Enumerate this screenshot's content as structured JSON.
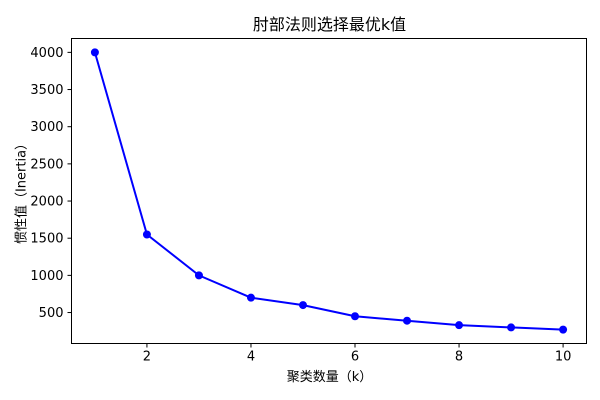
{
  "chart_data": {
    "type": "line",
    "title": "肘部法则选择最优k值",
    "xlabel": "聚类数量（k）",
    "ylabel": "惯性值（Inertia）",
    "series": [
      {
        "name": "inertia",
        "x": [
          1,
          2,
          3,
          4,
          5,
          6,
          7,
          8,
          9,
          10
        ],
        "values": [
          4000,
          1550,
          1000,
          700,
          600,
          450,
          390,
          330,
          300,
          270
        ],
        "line_color": "#0000ff",
        "marker": "circle",
        "line_width": 2,
        "marker_radius": 4
      }
    ],
    "xticks": [
      2,
      4,
      6,
      8,
      10
    ],
    "yticks": [
      500,
      1000,
      1500,
      2000,
      2500,
      3000,
      3500,
      4000
    ],
    "xlim": [
      0.55,
      10.45
    ],
    "ylim": [
      83.5,
      4186.5
    ],
    "grid": false,
    "legend_position": "none",
    "background_color": "#ffffff",
    "axis_color": "#000000"
  }
}
